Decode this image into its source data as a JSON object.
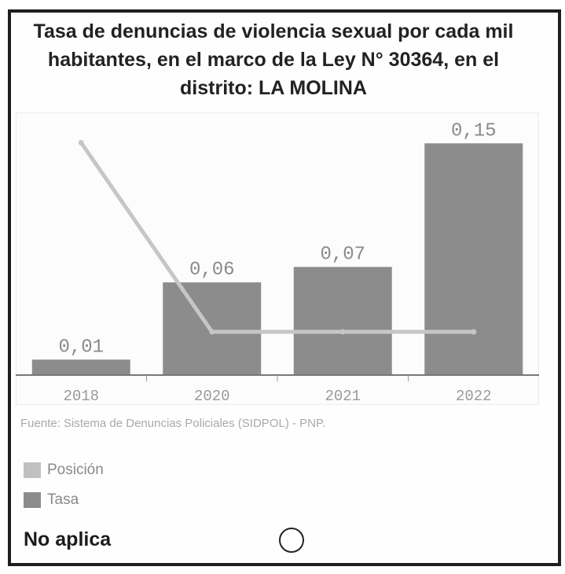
{
  "chart_data": {
    "type": "bar",
    "title": "Tasa de denuncias de violencia sexual por cada mil habitantes, en el marco de la Ley N° 30364, en el distrito: LA MOLINA",
    "categories": [
      "2018",
      "2020",
      "2021",
      "2022"
    ],
    "series": [
      {
        "name": "Tasa",
        "type": "bar",
        "values": [
          0.01,
          0.06,
          0.07,
          0.15
        ],
        "labels": [
          "0,01",
          "0,06",
          "0,07",
          "0,15"
        ]
      },
      {
        "name": "Posición",
        "type": "line",
        "values": [
          14,
          1,
          1,
          1
        ]
      }
    ],
    "ylim": [
      0,
      0.17
    ],
    "position_axis": {
      "range": [
        0,
        15
      ],
      "visible": false
    },
    "grid": false,
    "legend": "bottom-left",
    "colors": {
      "bar": "#8c8c8c",
      "line": "#c6c6c6"
    }
  },
  "source": "Fuente: Sistema de Denuncias Policiales (SIDPOL) - PNP.",
  "legend": [
    {
      "label": "Posición",
      "color": "#c0c0c0"
    },
    {
      "label": "Tasa",
      "color": "#8c8c8c"
    }
  ],
  "no_aplica": {
    "label": "No aplica",
    "selected": false
  }
}
